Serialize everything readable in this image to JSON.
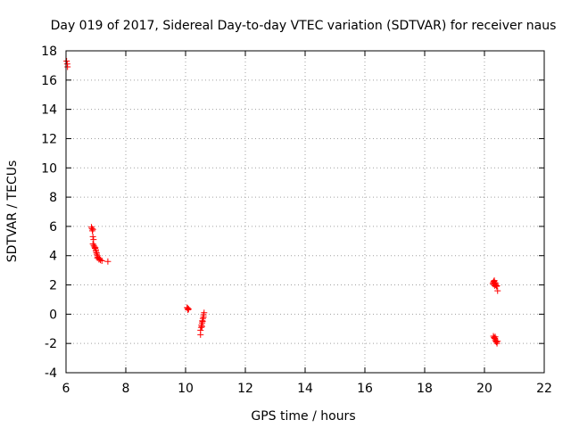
{
  "chart_data": {
    "type": "scatter",
    "title": "Day 019 of 2017, Sidereal Day-to-day VTEC variation (SDTVAR) for receiver naus",
    "xlabel": "GPS time / hours",
    "ylabel": "SDTVAR / TECUs",
    "xlim": [
      6,
      22
    ],
    "ylim": [
      -4,
      18
    ],
    "xticks": [
      "6",
      "8",
      "10",
      "12",
      "14",
      "16",
      "18",
      "20",
      "22"
    ],
    "yticks": [
      "-4",
      "-2",
      "0",
      "2",
      "4",
      "6",
      "8",
      "10",
      "12",
      "14",
      "16",
      "18"
    ],
    "grid": true,
    "marker": "+",
    "color": "#ff0000",
    "series": [
      {
        "name": "SDTVAR",
        "points": [
          [
            6.02,
            17.3
          ],
          [
            6.04,
            17.1
          ],
          [
            6.05,
            16.9
          ],
          [
            6.85,
            5.95
          ],
          [
            6.87,
            5.85
          ],
          [
            6.88,
            5.7
          ],
          [
            6.9,
            5.8
          ],
          [
            6.9,
            5.3
          ],
          [
            6.92,
            5.1
          ],
          [
            6.9,
            4.8
          ],
          [
            6.93,
            4.7
          ],
          [
            6.95,
            4.6
          ],
          [
            6.97,
            4.5
          ],
          [
            6.98,
            4.55
          ],
          [
            7.0,
            4.4
          ],
          [
            7.0,
            4.3
          ],
          [
            7.02,
            4.2
          ],
          [
            7.03,
            4.1
          ],
          [
            7.05,
            4.0
          ],
          [
            7.05,
            3.85
          ],
          [
            7.07,
            3.9
          ],
          [
            7.1,
            3.75
          ],
          [
            7.12,
            3.8
          ],
          [
            7.15,
            3.7
          ],
          [
            7.2,
            3.65
          ],
          [
            7.4,
            3.6
          ],
          [
            10.05,
            0.45
          ],
          [
            10.07,
            0.4
          ],
          [
            10.1,
            0.35
          ],
          [
            10.08,
            0.3
          ],
          [
            10.5,
            -1.4
          ],
          [
            10.5,
            -1.1
          ],
          [
            10.52,
            -0.9
          ],
          [
            10.53,
            -0.75
          ],
          [
            10.55,
            -0.6
          ],
          [
            10.56,
            -0.45
          ],
          [
            10.58,
            -0.3
          ],
          [
            10.6,
            -0.2
          ],
          [
            10.6,
            -0.05
          ],
          [
            10.62,
            0.1
          ],
          [
            10.55,
            -0.85
          ],
          [
            10.57,
            -0.5
          ],
          [
            20.28,
            2.1
          ],
          [
            20.3,
            2.2
          ],
          [
            20.32,
            2.25
          ],
          [
            20.33,
            2.3
          ],
          [
            20.35,
            2.15
          ],
          [
            20.37,
            2.0
          ],
          [
            20.38,
            2.1
          ],
          [
            20.4,
            1.9
          ],
          [
            20.42,
            1.95
          ],
          [
            20.44,
            1.6
          ],
          [
            20.3,
            2.05
          ],
          [
            20.34,
            1.95
          ],
          [
            20.3,
            -1.5
          ],
          [
            20.32,
            -1.6
          ],
          [
            20.34,
            -1.65
          ],
          [
            20.36,
            -1.75
          ],
          [
            20.38,
            -1.85
          ],
          [
            20.4,
            -1.9
          ],
          [
            20.42,
            -2.0
          ],
          [
            20.44,
            -1.85
          ],
          [
            20.36,
            -1.55
          ]
        ]
      }
    ]
  }
}
